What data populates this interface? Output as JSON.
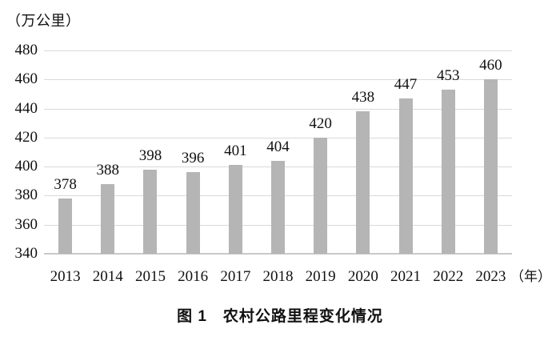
{
  "figure": {
    "caption": "图 1　农村公路里程变化情况"
  },
  "chart_data": {
    "type": "bar",
    "title": "图 1　农村公路里程变化情况",
    "y_unit_label": "（万公里）",
    "x_unit_label": "（年）",
    "categories": [
      "2013",
      "2014",
      "2015",
      "2016",
      "2017",
      "2018",
      "2019",
      "2020",
      "2021",
      "2022",
      "2023"
    ],
    "values": [
      378,
      388,
      398,
      396,
      401,
      404,
      420,
      438,
      447,
      453,
      460
    ],
    "y_ticks": [
      340,
      360,
      380,
      400,
      420,
      440,
      460,
      480
    ],
    "ylim": [
      340,
      480
    ],
    "grid": true,
    "legend": "none",
    "bar_color": "#b5b5b5",
    "gridline_color": "#d9d9d9",
    "text_color": "#111111"
  }
}
